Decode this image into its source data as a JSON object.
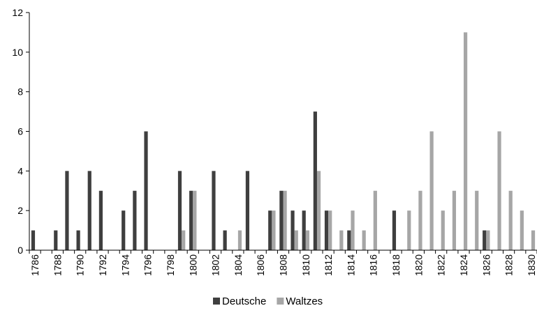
{
  "chart_data": {
    "type": "bar",
    "title": "",
    "xlabel": "",
    "ylabel": "",
    "ylim": [
      0,
      12
    ],
    "yticks": [
      0,
      2,
      4,
      6,
      8,
      10,
      12
    ],
    "grid": false,
    "legend_position": "bottom",
    "categories": [
      1786,
      1787,
      1788,
      1789,
      1790,
      1791,
      1792,
      1793,
      1794,
      1795,
      1796,
      1797,
      1798,
      1799,
      1800,
      1801,
      1802,
      1803,
      1804,
      1805,
      1806,
      1807,
      1808,
      1809,
      1810,
      1811,
      1812,
      1813,
      1814,
      1815,
      1816,
      1817,
      1818,
      1819,
      1820,
      1821,
      1822,
      1823,
      1824,
      1825,
      1826,
      1827,
      1828,
      1829,
      1830
    ],
    "tick_labels": [
      "1786",
      "1788",
      "1790",
      "1792",
      "1794",
      "1796",
      "1798",
      "1800",
      "1802",
      "1804",
      "1806",
      "1808",
      "1810",
      "1812",
      "1814",
      "1816",
      "1818",
      "1820",
      "1822",
      "1824",
      "1826",
      "1828",
      "1830"
    ],
    "series": [
      {
        "name": "Deutsche",
        "color": "#3f3f3f",
        "values": [
          1,
          0,
          1,
          4,
          1,
          4,
          3,
          0,
          2,
          3,
          6,
          0,
          0,
          4,
          3,
          0,
          4,
          1,
          0,
          4,
          0,
          2,
          3,
          2,
          2,
          7,
          2,
          0,
          1,
          0,
          0,
          0,
          2,
          0,
          0,
          0,
          0,
          0,
          0,
          0,
          1,
          0,
          0,
          0,
          0
        ]
      },
      {
        "name": "Waltzes",
        "color": "#a6a6a6",
        "values": [
          0,
          0,
          0,
          0,
          0,
          0,
          0,
          0,
          0,
          0,
          0,
          0,
          0,
          1,
          3,
          0,
          0,
          0,
          1,
          0,
          0,
          2,
          3,
          1,
          1,
          4,
          2,
          1,
          2,
          1,
          3,
          0,
          0,
          2,
          3,
          6,
          2,
          3,
          11,
          3,
          1,
          6,
          3,
          2,
          1
        ]
      }
    ]
  }
}
